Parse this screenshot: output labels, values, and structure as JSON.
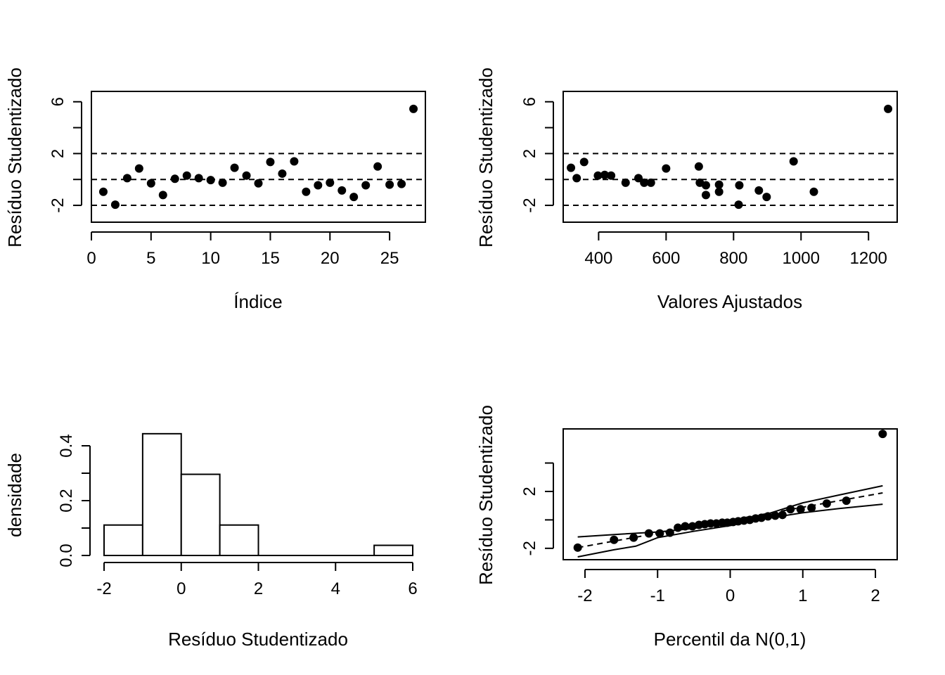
{
  "chart_data": [
    {
      "type": "scatter",
      "title": "",
      "xlabel": "Índice",
      "ylabel": "Resíduo Studentizado",
      "xlim": [
        0,
        28
      ],
      "ylim": [
        -3.3,
        6.8
      ],
      "xticks": [
        0,
        5,
        10,
        15,
        20,
        25
      ],
      "xtick_labels": [
        "0",
        "5",
        "10",
        "15",
        "20",
        "25"
      ],
      "yticks": [
        -2,
        0,
        2,
        4,
        6
      ],
      "ytick_labels": [
        "-2",
        "",
        "2",
        "",
        "6"
      ],
      "hlines": [
        -2,
        0,
        2
      ],
      "x": [
        1,
        2,
        3,
        4,
        5,
        6,
        7,
        8,
        9,
        10,
        11,
        12,
        13,
        14,
        15,
        16,
        17,
        18,
        19,
        20,
        21,
        22,
        23,
        24,
        25,
        26,
        27
      ],
      "y": [
        -0.95,
        -1.95,
        0.1,
        0.85,
        -0.3,
        -1.2,
        0.05,
        0.3,
        0.1,
        -0.05,
        -0.25,
        0.9,
        0.3,
        -0.3,
        1.35,
        0.45,
        1.4,
        -0.95,
        -0.45,
        -0.25,
        -0.85,
        -1.35,
        -0.45,
        1.0,
        -0.4,
        -0.35,
        5.45
      ]
    },
    {
      "type": "scatter",
      "title": "",
      "xlabel": "Valores Ajustados",
      "ylabel": "Resíduo Studentizado",
      "xlim": [
        295,
        1285
      ],
      "ylim": [
        -3.3,
        6.8
      ],
      "xticks": [
        400,
        600,
        800,
        1000,
        1200
      ],
      "xtick_labels": [
        "400",
        "600",
        "800",
        "1000",
        "1200"
      ],
      "yticks": [
        -2,
        0,
        2,
        4,
        6
      ],
      "ytick_labels": [
        "-2",
        "",
        "2",
        "",
        "6"
      ],
      "hlines": [
        -2,
        0,
        2
      ],
      "x": [
        318,
        335,
        357,
        398,
        418,
        437,
        480,
        518,
        535,
        555,
        600,
        697,
        700,
        718,
        718,
        757,
        757,
        815,
        817,
        875,
        898,
        978,
        1038,
        1258
      ],
      "y": [
        0.9,
        0.1,
        1.35,
        0.3,
        0.35,
        0.3,
        -0.25,
        0.1,
        -0.25,
        -0.25,
        0.85,
        1.0,
        -0.25,
        -0.45,
        -1.2,
        -0.4,
        -0.95,
        -1.95,
        -0.45,
        -0.85,
        -1.35,
        1.4,
        -0.95,
        5.45
      ]
    },
    {
      "type": "histogram",
      "title": "",
      "xlabel": "Resíduo Studentizado",
      "ylabel": "densidade",
      "xlim": [
        -2.4,
        6.4
      ],
      "ylim": [
        0,
        0.5
      ],
      "xticks": [
        -2,
        0,
        2,
        4,
        6
      ],
      "xtick_labels": [
        "-2",
        "0",
        "2",
        "4",
        "6"
      ],
      "yticks": [
        0,
        0.1,
        0.2,
        0.3,
        0.4
      ],
      "ytick_labels": [
        "0.0",
        "",
        "0.2",
        "",
        "0.4"
      ],
      "bins": [
        {
          "from": -2,
          "to": -1,
          "density": 0.111
        },
        {
          "from": -1,
          "to": 0,
          "density": 0.444
        },
        {
          "from": 0,
          "to": 1,
          "density": 0.296
        },
        {
          "from": 1,
          "to": 2,
          "density": 0.111
        },
        {
          "from": 2,
          "to": 3,
          "density": 0.0
        },
        {
          "from": 3,
          "to": 4,
          "density": 0.0
        },
        {
          "from": 4,
          "to": 5,
          "density": 0.0
        },
        {
          "from": 5,
          "to": 6,
          "density": 0.037
        }
      ]
    },
    {
      "type": "scatter",
      "title": "",
      "xlabel": "Percentil da N(0,1)",
      "ylabel": "Resíduo Studentizado",
      "xlim": [
        -2.3,
        2.3
      ],
      "ylim": [
        -2.8,
        6.4
      ],
      "xticks": [
        -2,
        -1,
        0,
        1,
        2
      ],
      "xtick_labels": [
        "-2",
        "-1",
        "0",
        "1",
        "2"
      ],
      "yticks": [
        -2,
        0,
        2,
        4
      ],
      "ytick_labels": [
        "-2",
        "",
        "2",
        ""
      ],
      "x": [
        -2.1,
        -1.6,
        -1.33,
        -1.12,
        -0.97,
        -0.83,
        -0.72,
        -0.62,
        -0.52,
        -0.43,
        -0.35,
        -0.27,
        -0.19,
        -0.11,
        -0.04,
        0.04,
        0.11,
        0.19,
        0.27,
        0.35,
        0.43,
        0.52,
        0.62,
        0.72,
        0.83,
        0.97,
        1.12,
        1.33,
        1.6,
        2.1
      ],
      "y": [
        -1.95,
        -1.4,
        -1.25,
        -0.95,
        -0.95,
        -0.9,
        -0.55,
        -0.45,
        -0.45,
        -0.35,
        -0.3,
        -0.25,
        -0.25,
        -0.2,
        -0.2,
        -0.15,
        -0.1,
        -0.05,
        0.0,
        0.1,
        0.15,
        0.25,
        0.3,
        0.35,
        0.75,
        0.75,
        0.85,
        1.15,
        1.35,
        6.05
      ],
      "reference_line": {
        "x": [
          -2.1,
          2.1
        ],
        "y": [
          -1.95,
          1.9
        ]
      },
      "lower_envelope": {
        "x": [
          -2.1,
          -1.6,
          -1.3,
          -1.0,
          -0.5,
          0.0,
          0.5,
          1.0,
          1.5,
          2.1
        ],
        "y": [
          -2.6,
          -2.1,
          -1.85,
          -1.25,
          -0.8,
          -0.4,
          0.1,
          0.5,
          0.8,
          1.1
        ]
      },
      "upper_envelope": {
        "x": [
          -2.1,
          -1.5,
          -1.0,
          -0.5,
          0.0,
          0.5,
          1.0,
          1.5,
          2.1
        ],
        "y": [
          -1.2,
          -1.0,
          -0.85,
          -0.6,
          -0.1,
          0.4,
          1.2,
          1.75,
          2.4
        ]
      }
    }
  ]
}
